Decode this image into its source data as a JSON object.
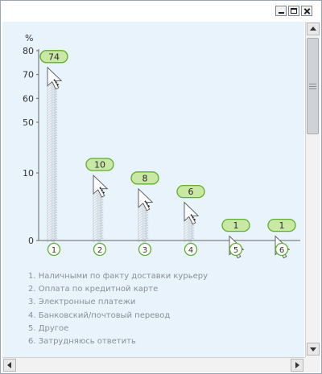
{
  "window": {
    "controls": {
      "minimize": "minimize-icon",
      "maximize": "maximize-icon",
      "close": "close-icon"
    }
  },
  "colors": {
    "bubble_fill": "#c8e8a4",
    "bubble_stroke": "#5fae2c",
    "axis": "#666666",
    "background": "#e9f3fb"
  },
  "chart_data": {
    "type": "bar",
    "ylabel": "%",
    "yticks": [
      0,
      10,
      50,
      60,
      70,
      80
    ],
    "ylim": [
      0,
      80
    ],
    "y_axis_broken": true,
    "categories": [
      "1",
      "2",
      "3",
      "4",
      "5",
      "6"
    ],
    "values": [
      74,
      10,
      8,
      6,
      1,
      1
    ],
    "grid": false,
    "legend": [
      "1. Наличными по факту доставки курьеру",
      "2. Оплата по кредитной карте",
      "3. Электронные платежи",
      "4. Банковский/почтовый перевод",
      "5. Другое",
      "6. Затрудняюсь ответить"
    ]
  }
}
